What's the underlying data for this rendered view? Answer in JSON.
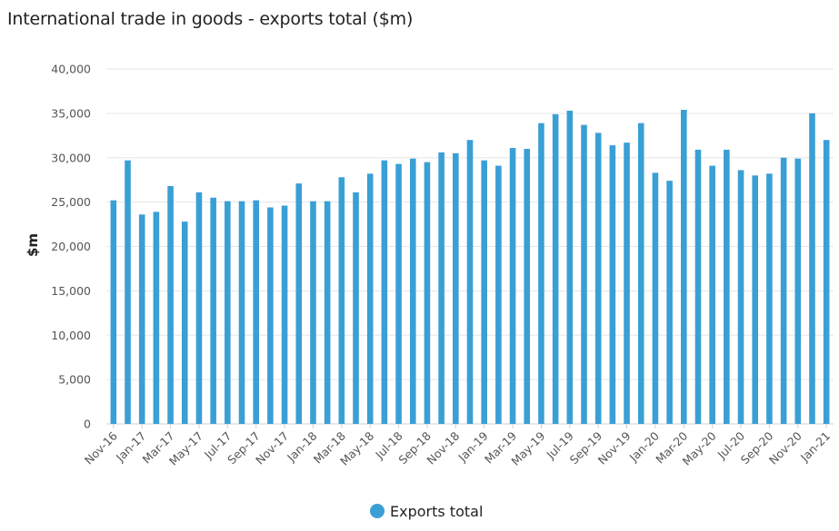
{
  "chart_data": {
    "type": "bar",
    "title": "International trade in goods - exports total ($m)",
    "xlabel": "",
    "ylabel": "$m",
    "ylim": [
      0,
      40000
    ],
    "yticks": [
      0,
      5000,
      10000,
      15000,
      20000,
      25000,
      30000,
      35000,
      40000
    ],
    "ytick_labels": [
      "0",
      "5,000",
      "10,000",
      "15,000",
      "20,000",
      "25,000",
      "30,000",
      "35,000",
      "40,000"
    ],
    "grid": true,
    "legend": "bottom-center",
    "color": "#3a9fd5",
    "categories": [
      "Nov-16",
      "Dec-16",
      "Jan-17",
      "Feb-17",
      "Mar-17",
      "Apr-17",
      "May-17",
      "Jun-17",
      "Jul-17",
      "Aug-17",
      "Sep-17",
      "Oct-17",
      "Nov-17",
      "Dec-17",
      "Jan-18",
      "Feb-18",
      "Mar-18",
      "Apr-18",
      "May-18",
      "Jun-18",
      "Jul-18",
      "Aug-18",
      "Sep-18",
      "Oct-18",
      "Nov-18",
      "Dec-18",
      "Jan-19",
      "Feb-19",
      "Mar-19",
      "Apr-19",
      "May-19",
      "Jun-19",
      "Jul-19",
      "Aug-19",
      "Sep-19",
      "Oct-19",
      "Nov-19",
      "Dec-19",
      "Jan-20",
      "Feb-20",
      "Mar-20",
      "Apr-20",
      "May-20",
      "Jun-20",
      "Jul-20",
      "Aug-20",
      "Sep-20",
      "Oct-20",
      "Nov-20",
      "Dec-20",
      "Jan-21"
    ],
    "tick_labels": [
      "Nov-16",
      "Jan-17",
      "Mar-17",
      "May-17",
      "Jul-17",
      "Sep-17",
      "Nov-17",
      "Jan-18",
      "Mar-18",
      "May-18",
      "Jul-18",
      "Sep-18",
      "Nov-18",
      "Jan-19",
      "Mar-19",
      "May-19",
      "Jul-19",
      "Sep-19",
      "Nov-19",
      "Jan-20",
      "Mar-20",
      "May-20",
      "Jul-20",
      "Sep-20",
      "Nov-20",
      "Jan-21"
    ],
    "series": [
      {
        "name": "Exports total",
        "values": [
          25200,
          29700,
          23600,
          23900,
          26800,
          22800,
          26100,
          25500,
          25100,
          25100,
          25200,
          24400,
          24600,
          27100,
          25100,
          25100,
          27800,
          26100,
          28200,
          29700,
          29300,
          29900,
          29500,
          30600,
          30500,
          32000,
          29700,
          29100,
          31100,
          31000,
          33900,
          34900,
          35300,
          33700,
          32800,
          31400,
          31700,
          33900,
          28300,
          27400,
          35400,
          30900,
          29100,
          30900,
          28600,
          28000,
          28200,
          30000,
          29900,
          35000,
          32000
        ]
      }
    ]
  }
}
